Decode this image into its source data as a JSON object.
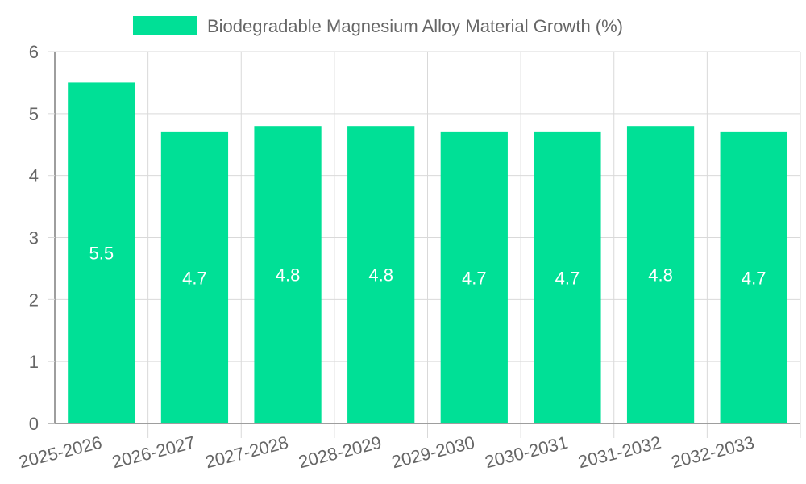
{
  "chart_data": {
    "type": "bar",
    "categories": [
      "2025-2026",
      "2026-2027",
      "2027-2028",
      "2028-2029",
      "2029-2030",
      "2030-2031",
      "2031-2032",
      "2032-2033"
    ],
    "series": [
      {
        "name": "Biodegradable Magnesium Alloy Material Growth (%)",
        "values": [
          5.5,
          4.7,
          4.8,
          4.8,
          4.7,
          4.7,
          4.8,
          4.7
        ],
        "color": "#00e096"
      }
    ],
    "title": "",
    "xlabel": "",
    "ylabel": "",
    "ylim": [
      0,
      6
    ],
    "yticks": [
      0,
      1,
      2,
      3,
      4,
      5,
      6
    ],
    "grid": true,
    "legend_position": "top"
  }
}
